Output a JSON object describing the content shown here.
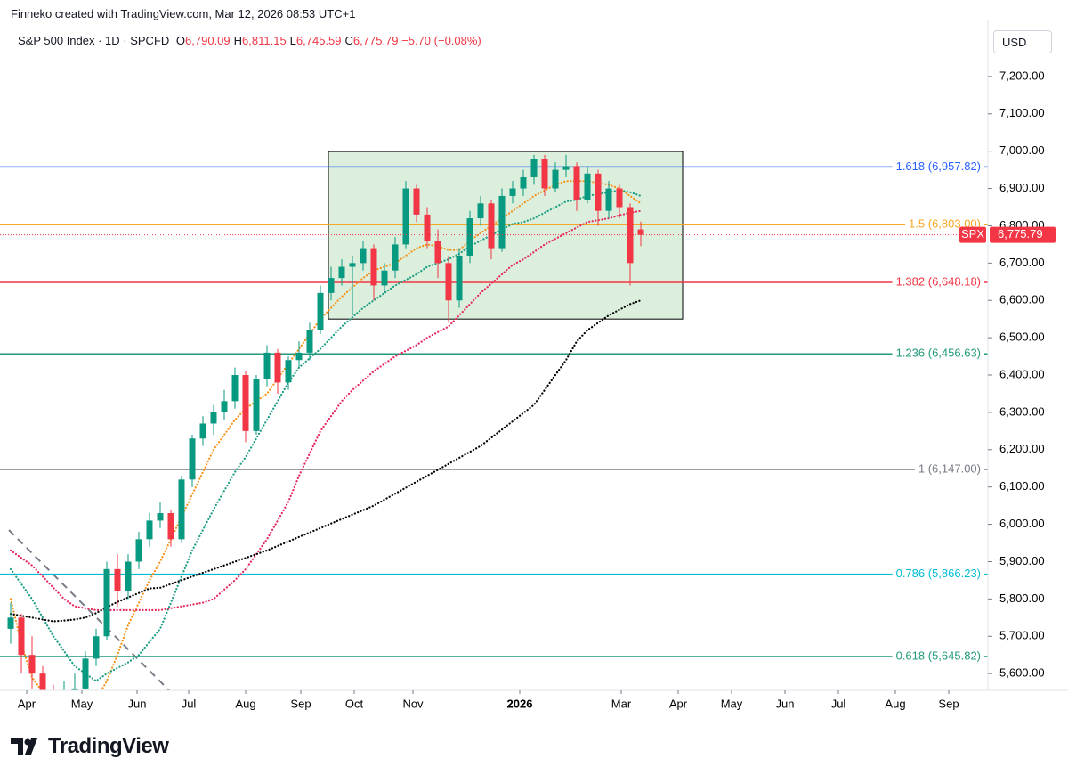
{
  "header": {
    "credit": "Finneko created with TradingView.com, Mar 12, 2026 08:53 UTC+1",
    "symbol": "S&P 500 Index · 1D · SPCFD",
    "ohlc": [
      {
        "key": "O",
        "value": "6,790.09"
      },
      {
        "key": "H",
        "value": "6,811.15"
      },
      {
        "key": "L",
        "value": "6,745.59"
      },
      {
        "key": "C",
        "value": "6,775.79"
      }
    ],
    "change": "−5.70 (−0.08%)",
    "currency": "USD"
  },
  "logo": "TradingView",
  "chart_data": {
    "type": "candlestick",
    "up_color": "#089981",
    "down_color": "#f23645",
    "xlim": [
      -15,
      540
    ],
    "ylim": [
      5555,
      7257
    ],
    "xticks": [
      {
        "value": 0,
        "label": "Apr"
      },
      {
        "value": 31,
        "label": "May"
      },
      {
        "value": 62,
        "label": "Jun"
      },
      {
        "value": 91,
        "label": "Jul"
      },
      {
        "value": 123,
        "label": "Aug"
      },
      {
        "value": 154,
        "label": "Sep"
      },
      {
        "value": 184,
        "label": "Oct"
      },
      {
        "value": 217,
        "label": "Nov"
      },
      {
        "value": 277,
        "label": "2026"
      },
      {
        "value": 334,
        "label": "Mar"
      },
      {
        "value": 366,
        "label": "Apr"
      },
      {
        "value": 396,
        "label": "May"
      },
      {
        "value": 426,
        "label": "Jun"
      },
      {
        "value": 456,
        "label": "Jul"
      },
      {
        "value": 488,
        "label": "Aug"
      },
      {
        "value": 518,
        "label": "Sep"
      }
    ],
    "yticks": [
      {
        "value": 5600,
        "label": "5,600.00"
      },
      {
        "value": 5700,
        "label": "5,700.00"
      },
      {
        "value": 5800,
        "label": "5,800.00"
      },
      {
        "value": 5900,
        "label": "5,900.00"
      },
      {
        "value": 6000,
        "label": "6,000.00"
      },
      {
        "value": 6100,
        "label": "6,100.00"
      },
      {
        "value": 6200,
        "label": "6,200.00"
      },
      {
        "value": 6300,
        "label": "6,300.00"
      },
      {
        "value": 6400,
        "label": "6,400.00"
      },
      {
        "value": 6500,
        "label": "6,500.00"
      },
      {
        "value": 6600,
        "label": "6,600.00"
      },
      {
        "value": 6700,
        "label": "6,700.00"
      },
      {
        "value": 6800,
        "label": "6,800.00"
      },
      {
        "value": 6900,
        "label": "6,900.00"
      },
      {
        "value": 7000,
        "label": "7,000.00"
      },
      {
        "value": 7100,
        "label": "7,100.00"
      },
      {
        "value": 7200,
        "label": "7,200.00"
      }
    ],
    "x": [
      -9,
      -3,
      3,
      9,
      15,
      21,
      27,
      33,
      39,
      45,
      51,
      57,
      63,
      69,
      75,
      81,
      87,
      93,
      99,
      105,
      111,
      117,
      123,
      129,
      135,
      141,
      147,
      153,
      159,
      165,
      171,
      177,
      183,
      189,
      195,
      201,
      207,
      213,
      219,
      225,
      231,
      237,
      243,
      249,
      255,
      261,
      267,
      273,
      279,
      285,
      291,
      297,
      303,
      309,
      315,
      321,
      327,
      333,
      339,
      345
    ],
    "ohlc": [
      [
        5720,
        5790,
        5680,
        5750
      ],
      [
        5750,
        5760,
        5600,
        5650
      ],
      [
        5650,
        5700,
        5560,
        5600
      ],
      [
        5600,
        5620,
        5500,
        5540
      ],
      [
        5540,
        5570,
        5480,
        5520
      ],
      [
        5520,
        5580,
        5490,
        5530
      ],
      [
        5530,
        5600,
        5510,
        5560
      ],
      [
        5560,
        5660,
        5540,
        5640
      ],
      [
        5640,
        5720,
        5620,
        5700
      ],
      [
        5700,
        5900,
        5690,
        5880
      ],
      [
        5880,
        5920,
        5780,
        5820
      ],
      [
        5820,
        5920,
        5800,
        5900
      ],
      [
        5900,
        5980,
        5880,
        5960
      ],
      [
        5960,
        6030,
        5940,
        6010
      ],
      [
        6010,
        6060,
        5990,
        6030
      ],
      [
        6030,
        6040,
        5940,
        5960
      ],
      [
        5960,
        6130,
        5950,
        6120
      ],
      [
        6120,
        6240,
        6100,
        6230
      ],
      [
        6230,
        6290,
        6210,
        6270
      ],
      [
        6270,
        6320,
        6240,
        6300
      ],
      [
        6300,
        6360,
        6280,
        6330
      ],
      [
        6330,
        6420,
        6310,
        6400
      ],
      [
        6400,
        6410,
        6220,
        6250
      ],
      [
        6250,
        6400,
        6240,
        6390
      ],
      [
        6390,
        6480,
        6370,
        6460
      ],
      [
        6460,
        6470,
        6350,
        6380
      ],
      [
        6380,
        6450,
        6360,
        6440
      ],
      [
        6440,
        6490,
        6420,
        6460
      ],
      [
        6460,
        6540,
        6440,
        6520
      ],
      [
        6520,
        6640,
        6510,
        6620
      ],
      [
        6620,
        6690,
        6600,
        6660
      ],
      [
        6660,
        6710,
        6640,
        6690
      ],
      [
        6690,
        6720,
        6560,
        6700
      ],
      [
        6700,
        6760,
        6680,
        6740
      ],
      [
        6740,
        6750,
        6600,
        6640
      ],
      [
        6640,
        6700,
        6620,
        6680
      ],
      [
        6680,
        6770,
        6660,
        6750
      ],
      [
        6750,
        6920,
        6740,
        6900
      ],
      [
        6900,
        6910,
        6810,
        6830
      ],
      [
        6830,
        6850,
        6740,
        6760
      ],
      [
        6760,
        6790,
        6660,
        6700
      ],
      [
        6700,
        6720,
        6540,
        6600
      ],
      [
        6600,
        6740,
        6580,
        6720
      ],
      [
        6720,
        6840,
        6700,
        6820
      ],
      [
        6820,
        6880,
        6800,
        6860
      ],
      [
        6860,
        6870,
        6710,
        6740
      ],
      [
        6740,
        6900,
        6730,
        6880
      ],
      [
        6880,
        6920,
        6860,
        6900
      ],
      [
        6900,
        6950,
        6880,
        6930
      ],
      [
        6930,
        6990,
        6910,
        6980
      ],
      [
        6980,
        6990,
        6880,
        6900
      ],
      [
        6900,
        6970,
        6890,
        6950
      ],
      [
        6950,
        6990,
        6930,
        6960
      ],
      [
        6960,
        6970,
        6840,
        6870
      ],
      [
        6870,
        6960,
        6860,
        6940
      ],
      [
        6940,
        6950,
        6800,
        6840
      ],
      [
        6840,
        6920,
        6820,
        6900
      ],
      [
        6900,
        6910,
        6820,
        6850
      ],
      [
        6850,
        6860,
        6640,
        6700
      ],
      [
        6790.09,
        6811.15,
        6745.59,
        6775.79
      ]
    ],
    "series": [
      {
        "color": "#f7931a",
        "values": [
          5800,
          5680,
          5590,
          5550,
          5520,
          5500,
          5490,
          5500,
          5530,
          5580,
          5650,
          5730,
          5790,
          5850,
          5900,
          5960,
          6020,
          6080,
          6140,
          6200,
          6240,
          6280,
          6310,
          6330,
          6350,
          6390,
          6430,
          6470,
          6510,
          6550,
          6580,
          6610,
          6635,
          6660,
          6680,
          6690,
          6700,
          6720,
          6740,
          6750,
          6745,
          6735,
          6735,
          6760,
          6780,
          6800,
          6820,
          6840,
          6860,
          6880,
          6895,
          6910,
          6920,
          6920,
          6920,
          6915,
          6910,
          6900,
          6880,
          6860
        ]
      },
      {
        "color": "#1e9e84",
        "values": [
          5880,
          5840,
          5800,
          5750,
          5700,
          5660,
          5620,
          5600,
          5580,
          5600,
          5615,
          5630,
          5650,
          5685,
          5720,
          5790,
          5860,
          5930,
          5985,
          6040,
          6090,
          6140,
          6180,
          6230,
          6280,
          6330,
          6380,
          6420,
          6445,
          6470,
          6500,
          6530,
          6555,
          6580,
          6600,
          6620,
          6640,
          6655,
          6670,
          6690,
          6700,
          6710,
          6725,
          6745,
          6760,
          6775,
          6790,
          6805,
          6810,
          6820,
          6835,
          6850,
          6865,
          6870,
          6880,
          6885,
          6890,
          6895,
          6890,
          6880
        ]
      },
      {
        "color": "#e5285e",
        "values": [
          5930,
          5910,
          5890,
          5860,
          5830,
          5800,
          5780,
          5775,
          5770,
          5770,
          5770,
          5770,
          5770,
          5770,
          5770,
          5775,
          5780,
          5785,
          5790,
          5800,
          5825,
          5850,
          5880,
          5920,
          5960,
          6010,
          6060,
          6130,
          6190,
          6250,
          6290,
          6330,
          6360,
          6385,
          6410,
          6430,
          6450,
          6465,
          6480,
          6500,
          6515,
          6530,
          6560,
          6590,
          6620,
          6645,
          6670,
          6695,
          6710,
          6730,
          6750,
          6765,
          6780,
          6795,
          6810,
          6815,
          6820,
          6828,
          6835,
          6840
        ]
      },
      {
        "color": "#000000",
        "values": [
          5760,
          5755,
          5750,
          5745,
          5740,
          5742,
          5745,
          5750,
          5762,
          5778,
          5792,
          5804,
          5816,
          5828,
          5830,
          5840,
          5850,
          5860,
          5870,
          5880,
          5890,
          5900,
          5910,
          5920,
          5930,
          5942,
          5954,
          5966,
          5978,
          5990,
          6002,
          6014,
          6026,
          6038,
          6050,
          6066,
          6082,
          6098,
          6114,
          6130,
          6146,
          6162,
          6178,
          6194,
          6210,
          6232,
          6254,
          6276,
          6298,
          6320,
          6360,
          6400,
          6440,
          6490,
          6520,
          6540,
          6560,
          6575,
          6590,
          6600
        ]
      }
    ],
    "levels": [
      {
        "value": 6957.82,
        "label": "1.618 (6,957.82)",
        "color": "#2962ff"
      },
      {
        "value": 6803.0,
        "label": "1.5 (6,803.00)",
        "color": "#f5a623"
      },
      {
        "value": 6648.18,
        "label": "1.382 (6,648.18)",
        "color": "#f23645"
      },
      {
        "value": 6456.63,
        "label": "1.236 (6,456.63)",
        "color": "#22997a"
      },
      {
        "value": 6147.0,
        "label": "1 (6,147.00)",
        "color": "#787b86"
      },
      {
        "value": 5866.23,
        "label": "0.786 (5,866.23)",
        "color": "#00bcd4"
      },
      {
        "value": 5645.82,
        "label": "0.618 (5,645.82)",
        "color": "#22997a"
      }
    ],
    "box": {
      "x": [
        169.5,
        368.5
      ],
      "y": [
        6550,
        6999
      ],
      "color": "#4caf50"
    },
    "last_label": {
      "symbol": "SPX",
      "price": "6,775.79"
    }
  }
}
